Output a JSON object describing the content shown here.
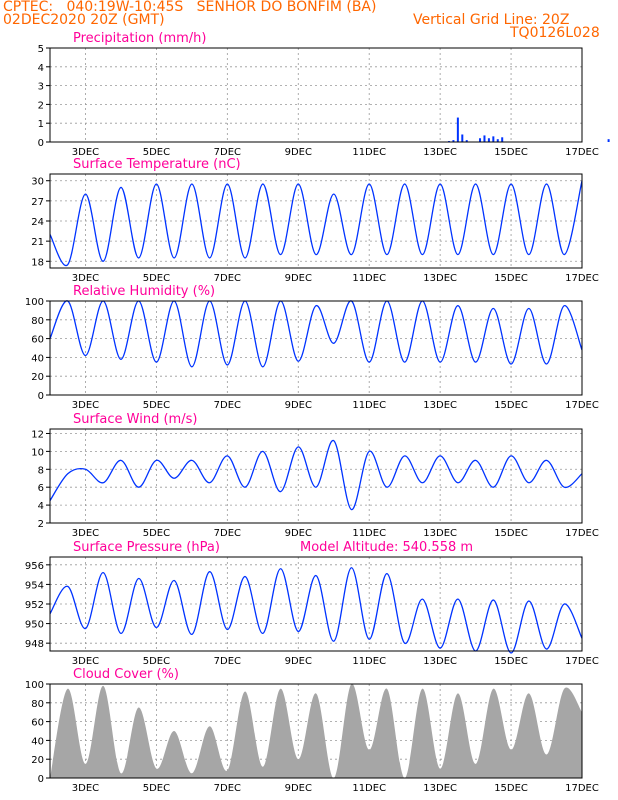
{
  "header": {
    "line1_left": "CPTEC:   040:19W-10:45S   SENHOR DO BONFIM (BA)",
    "line2_left": "02DEC2020 20Z (GMT)",
    "line2_right": "Vertical Grid Line: 20Z",
    "line3_right": "TQ0126L028"
  },
  "colors": {
    "header": "#ff6600",
    "title": "#ff0099",
    "series": "#0033ff",
    "cloud": "#a6a6a6",
    "grid": "#999999"
  },
  "chart_data": [
    {
      "type": "bar",
      "title": "Precipitation (mm/h)",
      "x_ticks": [
        "3DEC",
        "5DEC",
        "7DEC",
        "9DEC",
        "11DEC",
        "13DEC",
        "15DEC",
        "17DEC"
      ],
      "ylim": [
        0,
        5
      ],
      "yticks": [
        0,
        1,
        2,
        3,
        4,
        5
      ],
      "series": [
        {
          "values": [
            0,
            0,
            0,
            0,
            0,
            0,
            0,
            0,
            0,
            0,
            0,
            0,
            0,
            0,
            0,
            0,
            0,
            0,
            0.05,
            0.1,
            1.3,
            0.4,
            0.1,
            0,
            0,
            0.2,
            0.35,
            0.2,
            0.3,
            0.15,
            0.25,
            0,
            0,
            0,
            0,
            0,
            0,
            0,
            0,
            0,
            0,
            0,
            0,
            0,
            0,
            0,
            0,
            0,
            0,
            0,
            0,
            0,
            0,
            0,
            0.15,
            0,
            0,
            0,
            0,
            0,
            0,
            0,
            0
          ]
        }
      ],
      "x_start_day": 9.0,
      "x_step_days": 0.125
    },
    {
      "type": "line",
      "title": "Surface Temperature (nC)",
      "x_ticks": [
        "3DEC",
        "5DEC",
        "7DEC",
        "9DEC",
        "11DEC",
        "13DEC",
        "15DEC",
        "17DEC"
      ],
      "ylim": [
        17,
        31
      ],
      "yticks": [
        18,
        21,
        24,
        27,
        30
      ],
      "series": [
        {
          "x": [
            0.0,
            0.5,
            1.0,
            1.5,
            2.0,
            2.5,
            3.0,
            3.5,
            4.0,
            4.5,
            5.0,
            5.5,
            6.0,
            6.5,
            7.0,
            7.5,
            8.0,
            8.5,
            9.0,
            9.5,
            10.0,
            10.5,
            11.0,
            11.5,
            12.0,
            12.5,
            13.0,
            13.5,
            14.0,
            14.5,
            15.0
          ],
          "values": [
            22.0,
            17.5,
            28.0,
            18.0,
            29.0,
            18.5,
            29.5,
            18.5,
            29.5,
            18.5,
            29.5,
            18.5,
            29.5,
            19.0,
            29.5,
            19.0,
            28.0,
            19.0,
            29.5,
            19.0,
            29.5,
            19.0,
            29.5,
            19.0,
            29.5,
            19.0,
            29.5,
            19.0,
            29.5,
            19.0,
            30.0
          ]
        }
      ]
    },
    {
      "type": "line",
      "title": "Relative Humidity (%)",
      "x_ticks": [
        "3DEC",
        "5DEC",
        "7DEC",
        "9DEC",
        "11DEC",
        "13DEC",
        "15DEC",
        "17DEC"
      ],
      "ylim": [
        0,
        100
      ],
      "yticks": [
        0,
        20,
        40,
        60,
        80,
        100
      ],
      "series": [
        {
          "x": [
            0.0,
            0.5,
            1.0,
            1.5,
            2.0,
            2.5,
            3.0,
            3.5,
            4.0,
            4.5,
            5.0,
            5.5,
            6.0,
            6.5,
            7.0,
            7.5,
            8.0,
            8.5,
            9.0,
            9.5,
            10.0,
            10.5,
            11.0,
            11.5,
            12.0,
            12.5,
            13.0,
            13.5,
            14.0,
            14.5,
            15.0
          ],
          "values": [
            60,
            100,
            42,
            100,
            38,
            100,
            35,
            100,
            30,
            100,
            32,
            100,
            30,
            100,
            36,
            95,
            55,
            100,
            35,
            100,
            35,
            100,
            35,
            95,
            35,
            92,
            33,
            92,
            33,
            95,
            48
          ]
        }
      ]
    },
    {
      "type": "line",
      "title": "Surface Wind (m/s)",
      "x_ticks": [
        "3DEC",
        "5DEC",
        "7DEC",
        "9DEC",
        "11DEC",
        "13DEC",
        "15DEC",
        "17DEC"
      ],
      "ylim": [
        2,
        12.5
      ],
      "yticks": [
        2,
        4,
        6,
        8,
        10,
        12
      ],
      "series": [
        {
          "x": [
            0.0,
            0.5,
            1.0,
            1.5,
            2.0,
            2.5,
            3.0,
            3.5,
            4.0,
            4.5,
            5.0,
            5.5,
            6.0,
            6.5,
            7.0,
            7.5,
            8.0,
            8.5,
            9.0,
            9.5,
            10.0,
            10.5,
            11.0,
            11.5,
            12.0,
            12.5,
            13.0,
            13.5,
            14.0,
            14.5,
            15.0
          ],
          "values": [
            4.5,
            7.5,
            8.0,
            6.5,
            9.0,
            6.0,
            9.0,
            7.0,
            9.0,
            6.5,
            9.5,
            6.0,
            10.0,
            5.5,
            10.5,
            6.0,
            11.2,
            3.5,
            10.0,
            6.0,
            9.5,
            6.5,
            9.5,
            6.5,
            9.0,
            6.0,
            9.5,
            6.5,
            9.0,
            6.0,
            7.5
          ]
        }
      ]
    },
    {
      "type": "line",
      "title": "Surface Pressure (hPa)",
      "subtitle": "Model Altitude: 540.558 m",
      "x_ticks": [
        "3DEC",
        "5DEC",
        "7DEC",
        "9DEC",
        "11DEC",
        "13DEC",
        "15DEC",
        "17DEC"
      ],
      "ylim": [
        947.2,
        956.8
      ],
      "yticks": [
        948,
        950,
        952,
        954,
        956
      ],
      "series": [
        {
          "x": [
            0.0,
            0.5,
            1.0,
            1.5,
            2.0,
            2.5,
            3.0,
            3.5,
            4.0,
            4.5,
            5.0,
            5.5,
            6.0,
            6.5,
            7.0,
            7.5,
            8.0,
            8.5,
            9.0,
            9.5,
            10.0,
            10.5,
            11.0,
            11.5,
            12.0,
            12.5,
            13.0,
            13.5,
            14.0,
            14.5,
            15.0
          ],
          "values": [
            951.0,
            953.8,
            949.5,
            955.2,
            949.0,
            954.6,
            949.6,
            954.4,
            948.9,
            955.3,
            949.4,
            954.8,
            949.0,
            955.6,
            949.2,
            954.9,
            948.2,
            955.7,
            948.4,
            955.1,
            948.0,
            952.5,
            947.5,
            952.5,
            947.2,
            952.4,
            947.0,
            952.3,
            947.4,
            952.0,
            948.5
          ]
        }
      ]
    },
    {
      "type": "area",
      "title": "Cloud Cover (%)",
      "x_ticks": [
        "3DEC",
        "5DEC",
        "7DEC",
        "9DEC",
        "11DEC",
        "13DEC",
        "15DEC",
        "17DEC"
      ],
      "ylim": [
        0,
        100
      ],
      "yticks": [
        0,
        20,
        40,
        60,
        80,
        100
      ],
      "series": [
        {
          "x": [
            0.0,
            0.5,
            1.0,
            1.5,
            2.0,
            2.5,
            3.0,
            3.5,
            4.0,
            4.5,
            5.0,
            5.5,
            6.0,
            6.5,
            7.0,
            7.5,
            8.0,
            8.5,
            9.0,
            9.5,
            10.0,
            10.5,
            11.0,
            11.5,
            12.0,
            12.5,
            13.0,
            13.5,
            14.0,
            14.5,
            15.0
          ],
          "values": [
            0,
            95,
            15,
            98,
            5,
            75,
            10,
            50,
            5,
            55,
            8,
            92,
            12,
            95,
            20,
            90,
            0,
            100,
            30,
            95,
            0,
            95,
            10,
            90,
            15,
            95,
            30,
            90,
            25,
            95,
            70
          ]
        }
      ]
    }
  ]
}
